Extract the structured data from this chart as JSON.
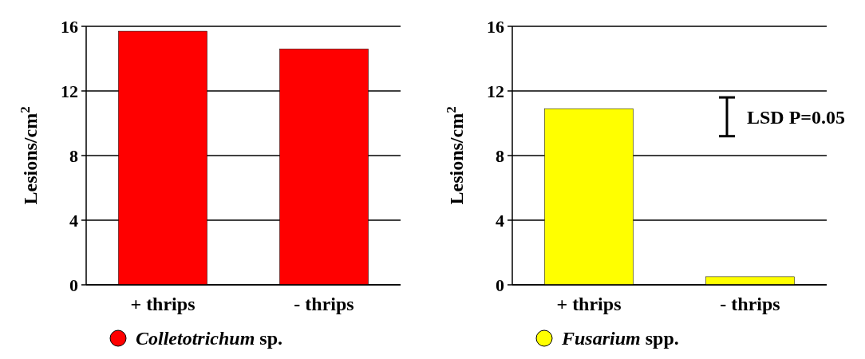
{
  "chart_data": [
    {
      "type": "bar",
      "categories": [
        "+ thrips",
        "- thrips"
      ],
      "ylabel": "Lesions/cm$^{2}$",
      "ylim": [
        0,
        16
      ],
      "yticks": [
        0,
        4,
        8,
        12,
        16
      ],
      "grid": "y",
      "legend": "bottom",
      "series": [
        {
          "name": "Colletotrichum sp.",
          "color": "#ff0000",
          "values": [
            15.7,
            14.6
          ]
        }
      ]
    },
    {
      "type": "bar",
      "categories": [
        "+ thrips",
        "- thrips"
      ],
      "ylabel": "Lesions/cm$^{2}$",
      "ylim": [
        0,
        16
      ],
      "yticks": [
        0,
        4,
        8,
        12,
        16
      ],
      "grid": "y",
      "legend": "bottom",
      "annotations": [
        "LSD P=0.05"
      ],
      "series": [
        {
          "name": "Fusarium spp.",
          "color": "#ffff00",
          "values": [
            10.9,
            0.5
          ]
        }
      ]
    }
  ]
}
